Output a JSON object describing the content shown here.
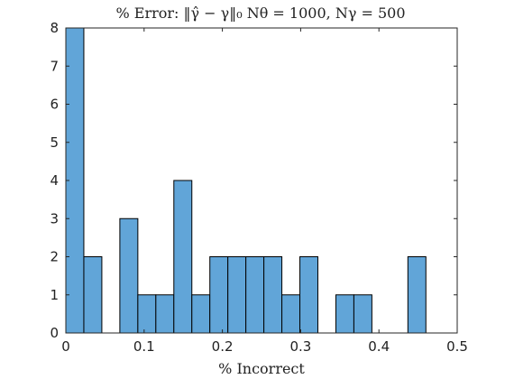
{
  "chart_data": {
    "type": "bar",
    "title": "% Error: ‖γ̂ − γ‖₀ Nθ = 1000, Nγ = 500",
    "xlabel": "% Incorrect",
    "ylabel": "",
    "xlim": [
      0,
      0.5
    ],
    "ylim": [
      0,
      8
    ],
    "bin_edges": [
      0,
      0.023,
      0.046,
      0.069,
      0.092,
      0.115,
      0.138,
      0.161,
      0.184,
      0.207,
      0.23,
      0.253,
      0.276,
      0.299,
      0.322,
      0.345,
      0.368,
      0.391,
      0.414,
      0.437,
      0.46
    ],
    "values": [
      8,
      2,
      0,
      3,
      1,
      1,
      4,
      1,
      2,
      2,
      2,
      2,
      1,
      2,
      0,
      1,
      1,
      0,
      0,
      2
    ],
    "xticks": [
      "0",
      "0.1",
      "0.2",
      "0.3",
      "0.4",
      "0.5"
    ],
    "yticks": [
      "0",
      "1",
      "2",
      "3",
      "4",
      "5",
      "6",
      "7",
      "8"
    ],
    "colors": {
      "bar": "#61a5d8",
      "edge": "#000000"
    },
    "grid": false
  }
}
